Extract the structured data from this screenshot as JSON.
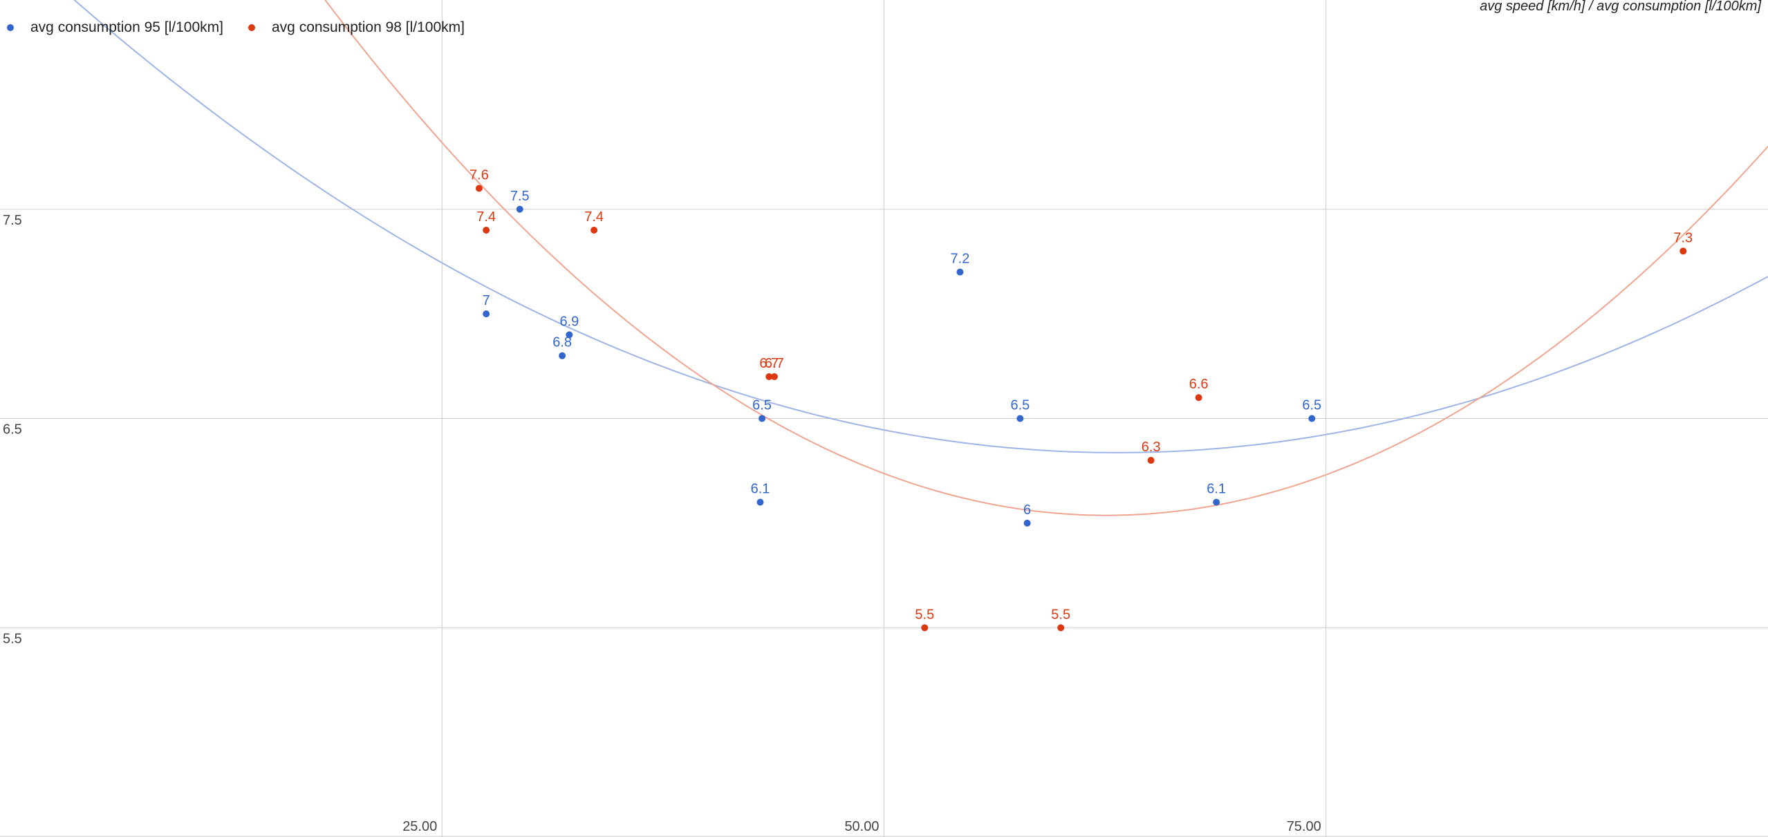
{
  "chart_data": {
    "type": "scatter",
    "title": "avg speed [km/h] / avg consumption [l/100km]",
    "xlabel": "",
    "ylabel": "",
    "xlim": [
      0,
      100
    ],
    "ylim": [
      4.5,
      8.5
    ],
    "x_ticks": [
      25,
      50,
      75
    ],
    "x_tick_labels": [
      "25.00",
      "50.00",
      "75.00"
    ],
    "y_ticks": [
      5.5,
      6.5,
      7.5
    ],
    "y_tick_labels": [
      "5.5",
      "6.5",
      "7.5"
    ],
    "grid": true,
    "legend_position": "top-left",
    "series": [
      {
        "name": "avg consumption 95 [l/100km]",
        "color": "#3366cc",
        "trend_color": "#9fb4e6",
        "trendline": "polynomial",
        "points": [
          {
            "x": 27.5,
            "y": 7.0,
            "label": "7"
          },
          {
            "x": 29.4,
            "y": 7.5,
            "label": "7.5"
          },
          {
            "x": 31.8,
            "y": 6.8,
            "label": "6.8"
          },
          {
            "x": 32.2,
            "y": 6.9,
            "label": "6.9"
          },
          {
            "x": 43.1,
            "y": 6.5,
            "label": "6.5"
          },
          {
            "x": 43.0,
            "y": 6.1,
            "label": "6.1"
          },
          {
            "x": 54.3,
            "y": 7.2,
            "label": "7.2"
          },
          {
            "x": 57.7,
            "y": 6.5,
            "label": "6.5"
          },
          {
            "x": 58.1,
            "y": 6.0,
            "label": "6"
          },
          {
            "x": 68.8,
            "y": 6.1,
            "label": "6.1"
          },
          {
            "x": 74.2,
            "y": 6.5,
            "label": "6.5"
          }
        ]
      },
      {
        "name": "avg consumption 98 [l/100km]",
        "color": "#dc3912",
        "trend_color": "#f0a591",
        "trendline": "polynomial",
        "points": [
          {
            "x": 27.1,
            "y": 7.6,
            "label": "7.6"
          },
          {
            "x": 27.5,
            "y": 7.4,
            "label": "7.4"
          },
          {
            "x": 33.6,
            "y": 7.4,
            "label": "7.4"
          },
          {
            "x": 43.5,
            "y": 6.7,
            "label": "6.7"
          },
          {
            "x": 43.8,
            "y": 6.7,
            "label": "6.7"
          },
          {
            "x": 52.3,
            "y": 5.5,
            "label": "5.5"
          },
          {
            "x": 60.0,
            "y": 5.5,
            "label": "5.5"
          },
          {
            "x": 65.1,
            "y": 6.3,
            "label": "6.3"
          },
          {
            "x": 67.8,
            "y": 6.6,
            "label": "6.6"
          },
          {
            "x": 95.2,
            "y": 7.3,
            "label": "7.3"
          }
        ]
      }
    ]
  }
}
